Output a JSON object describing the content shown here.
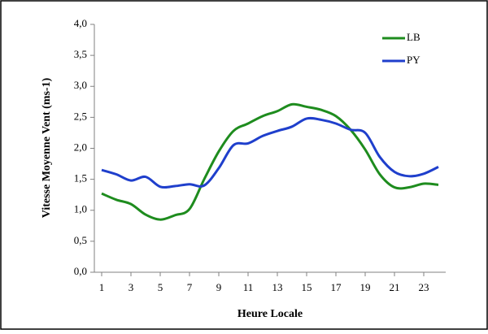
{
  "chart_data": {
    "type": "line",
    "x_label": "Heure Locale",
    "y_label": "Vitesse Moyenne Vent (ms-1)",
    "x": [
      1,
      2,
      3,
      4,
      5,
      6,
      7,
      8,
      9,
      10,
      11,
      12,
      13,
      14,
      15,
      16,
      17,
      18,
      19,
      20,
      21,
      22,
      23,
      24
    ],
    "series": [
      {
        "name": "LB",
        "color": "#1e8c1e",
        "values": [
          1.27,
          1.17,
          1.1,
          0.93,
          0.85,
          0.92,
          1.02,
          1.5,
          1.95,
          2.28,
          2.4,
          2.52,
          2.6,
          2.71,
          2.67,
          2.62,
          2.52,
          2.3,
          1.98,
          1.58,
          1.37,
          1.37,
          1.43,
          1.41
        ]
      },
      {
        "name": "PY",
        "color": "#1f3fcc",
        "values": [
          1.65,
          1.58,
          1.48,
          1.54,
          1.38,
          1.39,
          1.42,
          1.4,
          1.68,
          2.05,
          2.08,
          2.2,
          2.28,
          2.35,
          2.48,
          2.46,
          2.4,
          2.3,
          2.25,
          1.86,
          1.62,
          1.55,
          1.59,
          1.7
        ]
      }
    ],
    "xlim": [
      0.5,
      24.5
    ],
    "xticks": [
      1,
      3,
      5,
      7,
      9,
      11,
      13,
      15,
      17,
      19,
      21,
      23
    ],
    "ylim": [
      0,
      4
    ],
    "yticks": [
      {
        "value": 0,
        "label": "0,0"
      },
      {
        "value": 0.5,
        "label": "0,5"
      },
      {
        "value": 1,
        "label": "1,0"
      },
      {
        "value": 1.5,
        "label": "1,5"
      },
      {
        "value": 2,
        "label": "2,0"
      },
      {
        "value": 2.5,
        "label": "2,5"
      },
      {
        "value": 3,
        "label": "3,0"
      },
      {
        "value": 3.5,
        "label": "3,5"
      },
      {
        "value": 4,
        "label": "4,0"
      }
    ],
    "grid": false,
    "legend": "top-right"
  }
}
